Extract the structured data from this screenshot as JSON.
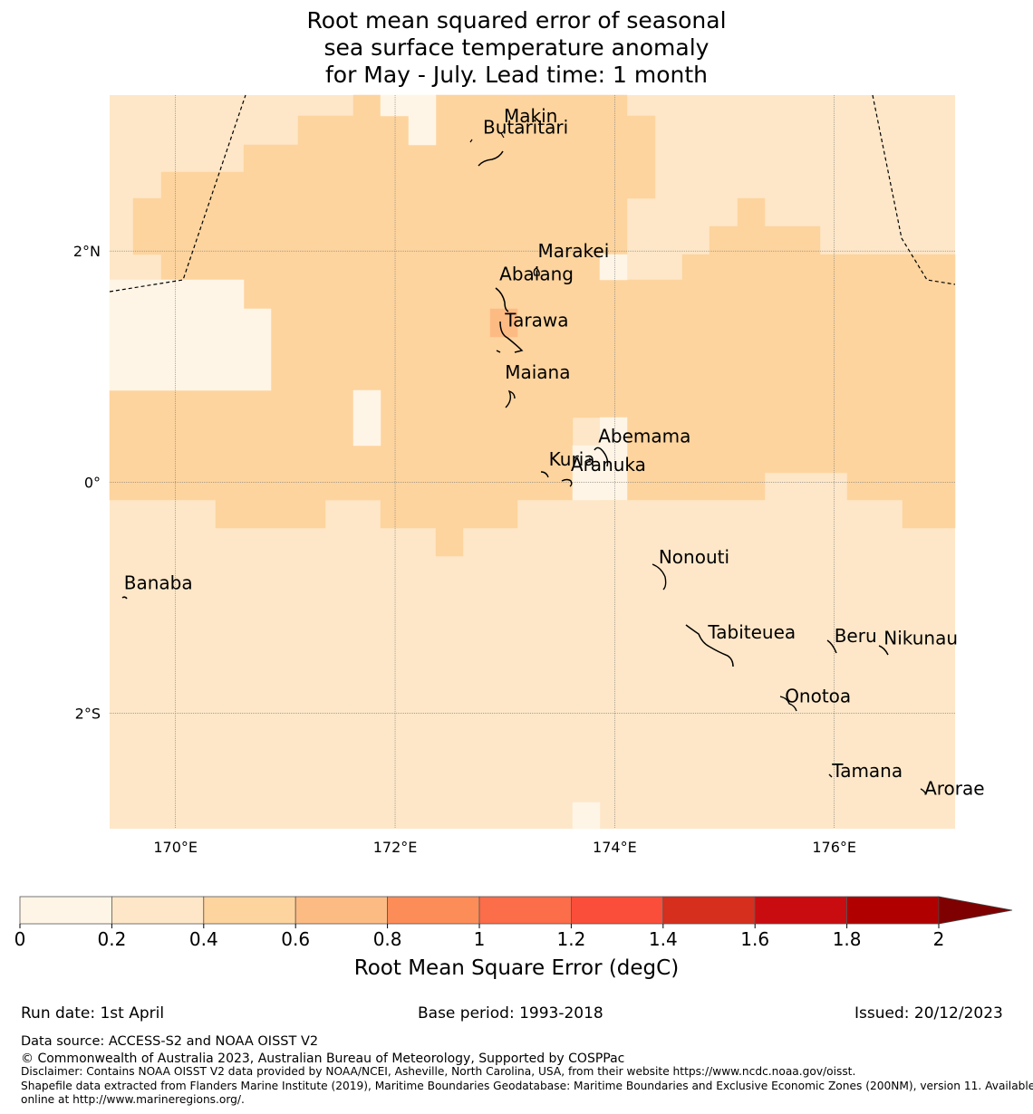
{
  "title_lines": [
    "Root mean squared error of seasonal",
    "sea surface temperature anomaly",
    "for May - July. Lead time: 1 month"
  ],
  "colors": {
    "c0": "#fff5e6",
    "c1": "#fee7c8",
    "c2": "#fdd49e",
    "coast": "#000000"
  },
  "map": {
    "lon_range": [
      169.4,
      177.1
    ],
    "lat_range": [
      -3.0,
      3.35
    ],
    "x_ticks": [
      {
        "lon": 170,
        "label": "170°E"
      },
      {
        "lon": 172,
        "label": "172°E"
      },
      {
        "lon": 174,
        "label": "174°E"
      },
      {
        "lon": 176,
        "label": "176°E"
      }
    ],
    "y_ticks": [
      {
        "lat": 2,
        "label": "2°N"
      },
      {
        "lat": 0,
        "label": "0°"
      },
      {
        "lat": -2,
        "label": "2°S"
      }
    ],
    "islands": [
      {
        "name": "Makin",
        "lon": 172.99,
        "lat": 3.17
      },
      {
        "name": "Butaritari",
        "lon": 172.8,
        "lat": 3.07
      },
      {
        "name": "Marakei",
        "lon": 173.3,
        "lat": 2.0
      },
      {
        "name": "Abaiang",
        "lon": 172.95,
        "lat": 1.8
      },
      {
        "name": "Tarawa",
        "lon": 173.0,
        "lat": 1.4
      },
      {
        "name": "Maiana",
        "lon": 173.0,
        "lat": 0.95
      },
      {
        "name": "Abemama",
        "lon": 173.85,
        "lat": 0.4
      },
      {
        "name": "Kuria",
        "lon": 173.4,
        "lat": 0.2
      },
      {
        "name": "Aranuka",
        "lon": 173.6,
        "lat": 0.15
      },
      {
        "name": "Nonouti",
        "lon": 174.4,
        "lat": -0.65
      },
      {
        "name": "Banaba",
        "lon": 169.53,
        "lat": -0.87
      },
      {
        "name": "Tabiteuea",
        "lon": 174.85,
        "lat": -1.3
      },
      {
        "name": "Beru",
        "lon": 176.0,
        "lat": -1.33
      },
      {
        "name": "Nikunau",
        "lon": 176.45,
        "lat": -1.35
      },
      {
        "name": "Onotoa",
        "lon": 175.55,
        "lat": -1.85
      },
      {
        "name": "Tamana",
        "lon": 175.98,
        "lat": -2.5
      },
      {
        "name": "Arorae",
        "lon": 176.82,
        "lat": -2.65
      }
    ]
  },
  "colorbar": {
    "label": "Root Mean Square Error (degC)",
    "ticks": [
      "0",
      "0.2",
      "0.4",
      "0.6",
      "0.8",
      "1",
      "1.2",
      "1.4",
      "1.6",
      "1.8",
      "2"
    ],
    "colors": [
      "#fff5e6",
      "#fee7c8",
      "#fdd49e",
      "#fdbb84",
      "#fc8d59",
      "#fc6d4a",
      "#fb4e3a",
      "#d62f1e",
      "#c90c10",
      "#b10000"
    ],
    "extend_color": "#7f0000"
  },
  "footer": {
    "run_date": "Run date: 1st April",
    "base_period": "Base period: 1993-2018",
    "issued": "Issued: 20/12/2023",
    "data_source": "Data source: ACCESS-S2 and NOAA OISST V2",
    "copyright": "© Commonwealth of Australia 2023, Australian Bureau of Meteorology, Supported by COSPPac",
    "disclaimer": "Disclaimer: Contains NOAA OISST V2 data provided by NOAA/NCEI, Asheville, North Carolina, USA, from their website https://www.ncdc.noaa.gov/oisst.",
    "shapefile_1": "Shapefile data extracted from Flanders Marine Institute (2019), Maritime Boundaries Geodatabase: Maritime Boundaries and Exclusive Economic Zones (200NM), version 11. Available",
    "shapefile_2": "online at http://www.marineregions.org/."
  }
}
